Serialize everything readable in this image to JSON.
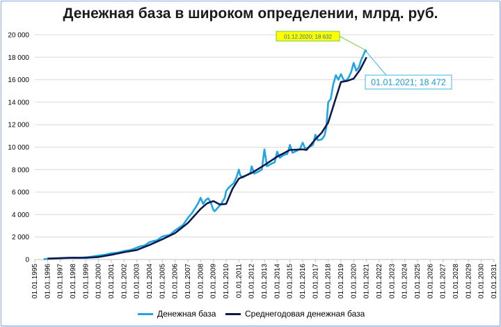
{
  "chart_data": {
    "type": "line",
    "title": "Денежная база в широком определении, млрд. руб.",
    "ylim": [
      0,
      20000
    ],
    "yticks": [
      0,
      2000,
      4000,
      6000,
      8000,
      10000,
      12000,
      14000,
      16000,
      18000,
      20000
    ],
    "ytick_labels": [
      "0",
      "2 000",
      "4 000",
      "6 000",
      "8 000",
      "10 000",
      "12 000",
      "14 000",
      "16 000",
      "18 000",
      "20 000"
    ],
    "xlim": [
      1995,
      2031
    ],
    "xtick_labels": [
      "01.01.1995",
      "01.01.1996",
      "01.01.1997",
      "01.01.1998",
      "01.01.1999",
      "01.01.2000",
      "01.01.2001",
      "01.01.2002",
      "01.01.2003",
      "01.01.2004",
      "01.01.2005",
      "01.01.2006",
      "01.01.2007",
      "01.01.2008",
      "01.01.2009",
      "01.01.2010",
      "01.01.2011",
      "01.01.2012",
      "01.01.2013",
      "01.01.2014",
      "01.01.2015",
      "01.01.2016",
      "01.01.2017",
      "01.01.2018",
      "01.01.2019",
      "01.01.2020",
      "01.01.2021",
      "01.01.2022",
      "01.01.2023",
      "01.01.2024",
      "01.01.2025",
      "01.01.2026",
      "01.01.2027",
      "01.01.2028",
      "01.01.2029",
      "01.01.2030",
      "01.01.2031"
    ],
    "grid": true,
    "legend_position": "bottom",
    "series": [
      {
        "name": "Денежная база",
        "color": "#1ea5e6",
        "x": [
          1995.7,
          1996.0,
          1996.5,
          1997.0,
          1997.5,
          1998.0,
          1998.5,
          1999.0,
          1999.5,
          2000.0,
          2000.5,
          2001.0,
          2001.5,
          2002.0,
          2002.5,
          2003.0,
          2003.3,
          2003.6,
          2004.0,
          2004.3,
          2004.6,
          2005.0,
          2005.3,
          2005.6,
          2006.0,
          2006.3,
          2006.6,
          2007.0,
          2007.3,
          2007.5,
          2007.8,
          2008.0,
          2008.2,
          2008.4,
          2008.6,
          2008.8,
          2009.0,
          2009.1,
          2009.3,
          2009.6,
          2009.9,
          2010.0,
          2010.2,
          2010.4,
          2010.6,
          2010.8,
          2011.0,
          2011.1,
          2011.3,
          2011.6,
          2011.9,
          2012.0,
          2012.2,
          2012.5,
          2012.8,
          2013.0,
          2013.2,
          2013.5,
          2013.8,
          2014.0,
          2014.2,
          2014.5,
          2014.8,
          2015.0,
          2015.2,
          2015.5,
          2015.8,
          2016.0,
          2016.2,
          2016.5,
          2016.8,
          2017.0,
          2017.2,
          2017.5,
          2017.7,
          2017.85,
          2018.0,
          2018.2,
          2018.4,
          2018.6,
          2018.8,
          2019.0,
          2019.2,
          2019.4,
          2019.6,
          2019.8,
          2020.0,
          2020.2,
          2020.4,
          2020.6,
          2020.8,
          2020.92,
          2021.0
        ],
        "y": [
          20,
          60,
          90,
          130,
          150,
          170,
          150,
          200,
          260,
          350,
          420,
          560,
          610,
          760,
          840,
          1050,
          1180,
          1250,
          1550,
          1640,
          1730,
          2050,
          2130,
          2200,
          2600,
          2820,
          3050,
          3700,
          4100,
          4450,
          5000,
          5500,
          4950,
          5300,
          5450,
          5050,
          4400,
          4300,
          4550,
          4950,
          5500,
          6100,
          6400,
          6600,
          6800,
          7300,
          8000,
          7500,
          7300,
          7500,
          7700,
          8300,
          7650,
          7800,
          8000,
          9800,
          8300,
          8500,
          8650,
          9600,
          9050,
          9300,
          9400,
          10200,
          9500,
          9650,
          9850,
          10400,
          9850,
          10000,
          10200,
          11100,
          10600,
          10700,
          11000,
          11700,
          14000,
          14300,
          15600,
          16400,
          16000,
          16500,
          16000,
          15900,
          16200,
          16700,
          17500,
          16800,
          17100,
          17800,
          18300,
          18632,
          18472
        ]
      },
      {
        "name": "Среднегодовая денежная база",
        "color": "#0b1a4a",
        "x": [
          1996.0,
          1997.0,
          1998.0,
          1999.0,
          2000.0,
          2001.0,
          2002.0,
          2003.0,
          2004.0,
          2005.0,
          2006.0,
          2007.0,
          2008.0,
          2008.5,
          2009.0,
          2009.5,
          2010.0,
          2010.5,
          2011.0,
          2012.0,
          2013.0,
          2014.0,
          2015.0,
          2016.0,
          2016.3,
          2017.0,
          2017.5,
          2018.0,
          2018.5,
          2019.0,
          2019.5,
          2020.0,
          2020.5,
          2021.0
        ],
        "y": [
          80,
          120,
          160,
          150,
          220,
          420,
          650,
          850,
          1300,
          1800,
          2350,
          3250,
          4500,
          5000,
          5200,
          4900,
          4950,
          6300,
          7200,
          7700,
          8400,
          9150,
          9750,
          9800,
          9750,
          10700,
          11300,
          12200,
          14000,
          15800,
          15900,
          16100,
          16900,
          18000
        ]
      }
    ],
    "annotations": [
      {
        "text": "01.12.2020;  18 632",
        "x": 2020.92,
        "y": 18632
      },
      {
        "text": "01.01.2021;  18 472",
        "x": 2021.0,
        "y": 18472
      }
    ]
  }
}
